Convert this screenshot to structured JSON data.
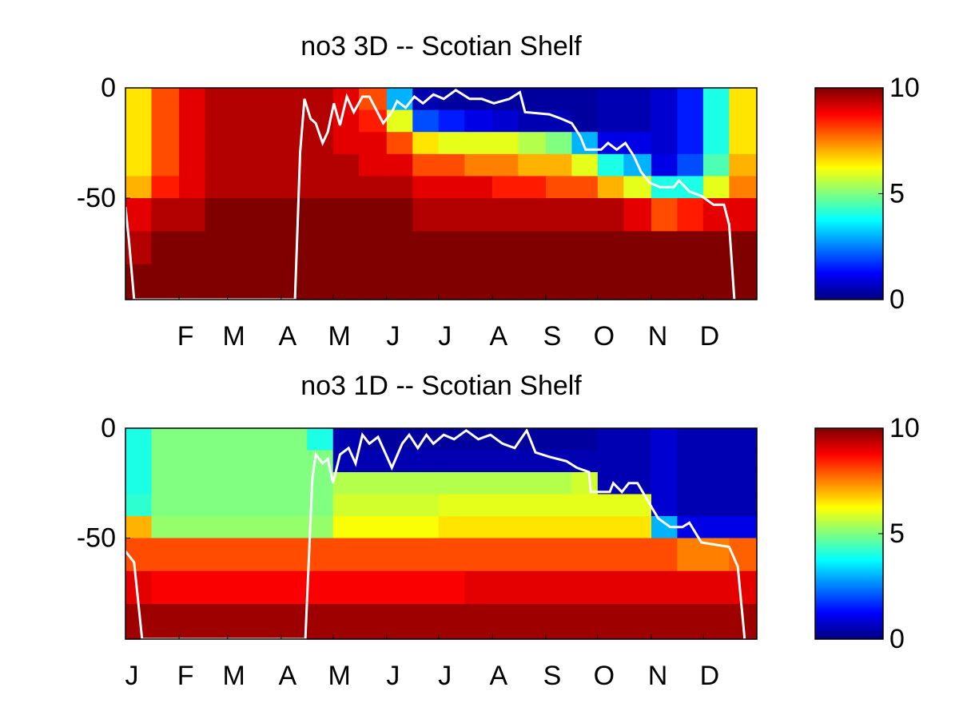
{
  "chart_data": [
    {
      "type": "heatmap",
      "title": "no3 3D   -- Scotian Shelf",
      "colormap": "jet",
      "clim": [
        0,
        10
      ],
      "cticks": [
        0,
        5,
        10
      ],
      "xlim": [
        1,
        366
      ],
      "ylim": [
        -96,
        0
      ],
      "xticks": [
        {
          "value": 32,
          "label": "F"
        },
        {
          "value": 60,
          "label": "M"
        },
        {
          "value": 91,
          "label": "A"
        },
        {
          "value": 121,
          "label": "M"
        },
        {
          "value": 152,
          "label": "J"
        },
        {
          "value": 182,
          "label": "J"
        },
        {
          "value": 213,
          "label": "A"
        },
        {
          "value": 244,
          "label": "S"
        },
        {
          "value": 274,
          "label": "O"
        },
        {
          "value": 305,
          "label": "N"
        },
        {
          "value": 335,
          "label": "D"
        }
      ],
      "yticks": [
        0,
        -50
      ],
      "x_edges": [
        1,
        16,
        32,
        47,
        60,
        75,
        91,
        106,
        121,
        136,
        152,
        167,
        182,
        197,
        213,
        228,
        244,
        259,
        274,
        289,
        305,
        320,
        335,
        350,
        366
      ],
      "y_edges": [
        0,
        -10,
        -20,
        -30,
        -40,
        -50,
        -65,
        -80,
        -96
      ],
      "z": [
        [
          6.5,
          8,
          9,
          9.5,
          9.5,
          9.5,
          9.5,
          9.5,
          9,
          8,
          3,
          0.5,
          0.3,
          0.3,
          0.3,
          0.3,
          0.3,
          0.3,
          0.5,
          0.5,
          0.8,
          1.5,
          4,
          6.5
        ],
        [
          6.5,
          8,
          9,
          9.5,
          9.5,
          9.5,
          9.5,
          9.5,
          9,
          8.5,
          6,
          2,
          1.5,
          1,
          0.8,
          0.5,
          0.5,
          0.3,
          0.5,
          0.5,
          0.8,
          1.5,
          4,
          6.5
        ],
        [
          6.5,
          8,
          9,
          9.5,
          9.5,
          9.5,
          9.5,
          9.5,
          9,
          9,
          8,
          6.5,
          6,
          6,
          6,
          5.5,
          5,
          3,
          1,
          1,
          0.8,
          1.5,
          4,
          6.5
        ],
        [
          6.5,
          8,
          9,
          9.5,
          9.5,
          9.5,
          9.5,
          9.5,
          9.5,
          9,
          9,
          8,
          8,
          7.5,
          7.5,
          7,
          7,
          6,
          4,
          3,
          1,
          2,
          4.5,
          7
        ],
        [
          7,
          8.5,
          9,
          9.5,
          9.5,
          9.5,
          9.5,
          9.5,
          9.5,
          9.5,
          9.5,
          9,
          9,
          9,
          8.5,
          8.5,
          8,
          8,
          7,
          6,
          4,
          4,
          6,
          7.5
        ],
        [
          9,
          9.5,
          9.5,
          10,
          10,
          10,
          10,
          10,
          10,
          10,
          10,
          9.5,
          9.5,
          9.5,
          9.5,
          9.5,
          9.5,
          9.5,
          9.5,
          9,
          8,
          8.5,
          9,
          9
        ],
        [
          9.5,
          10,
          10,
          10,
          10,
          10,
          10,
          10,
          10,
          10,
          10,
          10,
          10,
          10,
          10,
          10,
          10,
          10,
          10,
          10,
          10,
          10,
          10,
          10
        ],
        [
          10,
          10,
          10,
          10,
          10,
          10,
          10,
          10,
          10,
          10,
          10,
          10,
          10,
          10,
          10,
          10,
          10,
          10,
          10,
          10,
          10,
          10,
          10,
          10
        ]
      ],
      "line": {
        "color": "#ffffff",
        "x": [
          1,
          3,
          6,
          99,
          102,
          104.5,
          108,
          111,
          115,
          118,
          121.5,
          125,
          129,
          133,
          138,
          142,
          150,
          155,
          158,
          163,
          168,
          173,
          179,
          185,
          192,
          200,
          207,
          214,
          223,
          229,
          232,
          246,
          253,
          259,
          264,
          267,
          276,
          280,
          285,
          290,
          295,
          299,
          304,
          310,
          318,
          321,
          327,
          334,
          341,
          347,
          350,
          353
        ],
        "y": [
          -54,
          -69,
          -96,
          -96,
          -29,
          -5,
          -14,
          -16,
          -25,
          -20,
          -7,
          -17,
          -4,
          -11,
          -4,
          -4,
          -16,
          -11,
          -6,
          -9,
          -4,
          -7,
          -3,
          -5,
          -1,
          -5,
          -5,
          -7,
          -5,
          -2,
          -11,
          -12,
          -14,
          -16,
          -22,
          -28,
          -28,
          -25,
          -28,
          -25,
          -31,
          -38,
          -43,
          -45,
          -45,
          -42,
          -47,
          -49,
          -53,
          -53,
          -62,
          -96
        ]
      }
    },
    {
      "type": "heatmap",
      "title": "no3 1D   -- Scotian Shelf",
      "colormap": "jet",
      "clim": [
        0,
        10
      ],
      "cticks": [
        0,
        5,
        10
      ],
      "xlim": [
        1,
        366
      ],
      "ylim": [
        -96,
        0
      ],
      "xticks": [
        {
          "value": 1,
          "label": "J"
        },
        {
          "value": 32,
          "label": "F"
        },
        {
          "value": 60,
          "label": "M"
        },
        {
          "value": 91,
          "label": "A"
        },
        {
          "value": 121,
          "label": "M"
        },
        {
          "value": 152,
          "label": "J"
        },
        {
          "value": 182,
          "label": "J"
        },
        {
          "value": 213,
          "label": "A"
        },
        {
          "value": 244,
          "label": "S"
        },
        {
          "value": 274,
          "label": "O"
        },
        {
          "value": 305,
          "label": "N"
        },
        {
          "value": 335,
          "label": "D"
        }
      ],
      "yticks": [
        0,
        -50
      ],
      "x_edges": [
        1,
        16,
        32,
        47,
        60,
        75,
        91,
        106,
        121,
        136,
        152,
        167,
        182,
        197,
        213,
        228,
        244,
        259,
        274,
        289,
        305,
        320,
        335,
        350,
        366
      ],
      "y_edges": [
        0,
        -10,
        -20,
        -30,
        -40,
        -50,
        -65,
        -80,
        -96
      ],
      "z": [
        [
          4,
          5,
          5,
          5,
          5,
          5,
          5,
          4,
          0.5,
          0.3,
          0.3,
          0.3,
          0.3,
          0.3,
          0.3,
          0.3,
          0.3,
          0.3,
          0.5,
          0.5,
          0.8,
          0.5,
          0.5,
          0.5
        ],
        [
          4,
          5,
          5,
          5,
          5,
          5,
          5,
          5,
          0.5,
          0.5,
          0.5,
          0.5,
          0.5,
          0.5,
          0.5,
          0.5,
          0.5,
          0.5,
          0.5,
          0.5,
          0.8,
          0.5,
          0.5,
          0.5
        ],
        [
          4,
          5,
          5,
          5,
          5,
          5,
          5,
          5,
          5.5,
          5.5,
          5.5,
          5.5,
          5.5,
          5.5,
          5.5,
          5.5,
          5.5,
          5.8,
          0.5,
          0.5,
          0.8,
          0.5,
          0.5,
          0.5
        ],
        [
          4.2,
          5,
          5,
          5,
          5,
          5,
          5,
          5,
          5.8,
          5.8,
          5.8,
          5.8,
          6,
          6,
          6,
          6,
          6,
          6,
          6,
          6,
          0.8,
          0.5,
          0.5,
          0.5
        ],
        [
          7,
          5.2,
          5.2,
          5.2,
          5.2,
          5.2,
          5.2,
          5.2,
          6.2,
          6.2,
          6.2,
          6.2,
          6.5,
          6.5,
          6.5,
          6.5,
          6.5,
          6.5,
          6.5,
          6.5,
          3,
          1,
          1,
          1
        ],
        [
          8,
          8,
          8,
          8,
          8,
          8,
          8,
          8,
          8,
          8,
          8,
          8,
          8,
          8,
          8,
          8,
          8,
          8,
          8,
          8,
          8,
          7.5,
          7.5,
          7.8
        ],
        [
          9,
          8.8,
          8.8,
          8.8,
          8.8,
          8.8,
          8.8,
          8.8,
          8.8,
          8.8,
          8.8,
          8.8,
          8.8,
          9,
          9,
          9,
          9,
          9,
          9,
          9,
          9,
          9,
          9,
          9
        ],
        [
          9.7,
          9.7,
          9.7,
          9.7,
          9.7,
          9.7,
          9.7,
          9.7,
          9.7,
          9.7,
          9.7,
          9.7,
          9.7,
          9.7,
          9.7,
          9.7,
          9.7,
          9.7,
          9.7,
          9.7,
          9.7,
          9.7,
          9.7,
          9.7
        ]
      ],
      "line": {
        "color": "#ffffff",
        "x": [
          1,
          6,
          10.6,
          105,
          109,
          111,
          115,
          118,
          121,
          125,
          130,
          134,
          138,
          142,
          147,
          151,
          155,
          161,
          165,
          170,
          175,
          179,
          185,
          191,
          198,
          205,
          212,
          219,
          226,
          233,
          238,
          246,
          256,
          262,
          269,
          270,
          281,
          283,
          288,
          292,
          297,
          303,
          309,
          316,
          323,
          327,
          334,
          342,
          350,
          355,
          359
        ],
        "y": [
          -56,
          -61,
          -96,
          -96,
          -23,
          -12,
          -16,
          -14,
          -25,
          -12,
          -9,
          -16,
          -3,
          -7,
          -4,
          -11,
          -18,
          -7,
          -3,
          -9,
          -3,
          -7,
          -3,
          -5,
          -1,
          -5,
          -3,
          -7,
          -9,
          -1,
          -11,
          -13,
          -15,
          -18,
          -20,
          -29,
          -29,
          -25,
          -29,
          -25,
          -25,
          -33,
          -41,
          -45,
          -45,
          -43,
          -52,
          -53,
          -54,
          -63,
          -96
        ]
      }
    }
  ]
}
